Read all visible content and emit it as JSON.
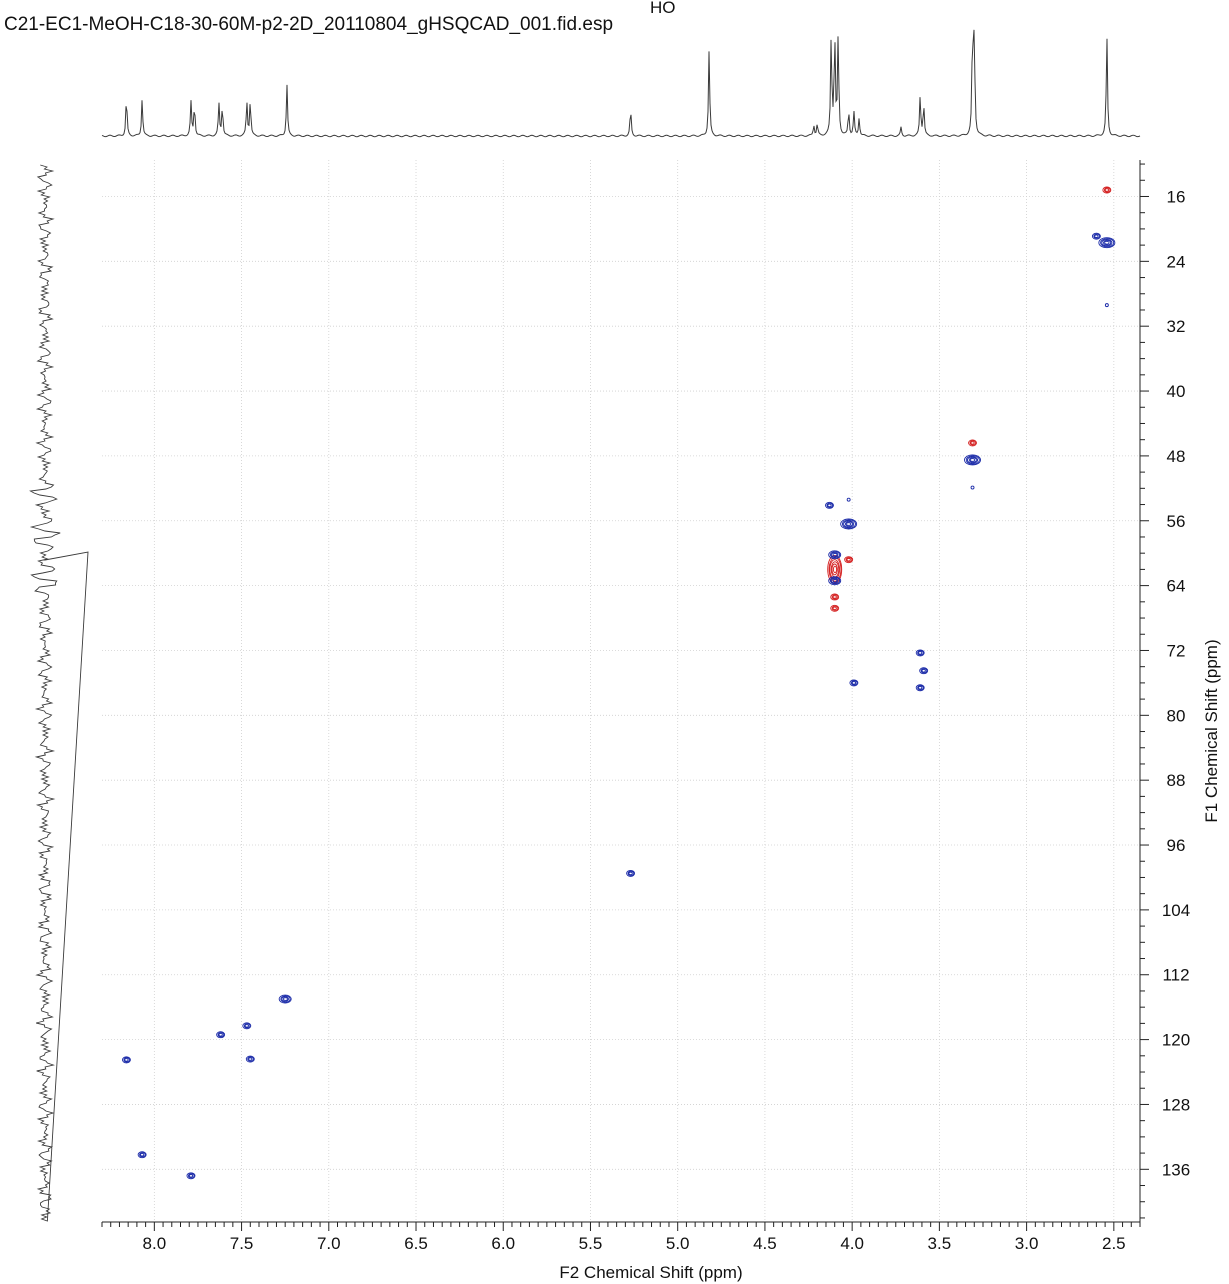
{
  "header": {
    "file_title": "C21-EC1-MeOH-C18-30-60M-p2-2D_20110804_gHSQCAD_001.fid.esp",
    "structure_fragment": "HO"
  },
  "colors": {
    "positive_contour": "#1a2aa8",
    "negative_contour": "#d42020",
    "grid": "#cfcfcf",
    "trace": "#3a3a3a"
  },
  "chart_data": {
    "type": "scatter",
    "subtype": "2D NMR HSQC contour plot",
    "xlabel": "F2 Chemical Shift (ppm)",
    "ylabel": "F1 Chemical Shift (ppm)",
    "xlim": [
      8.3,
      2.35
    ],
    "ylim": [
      11.5,
      142.5
    ],
    "x_ticks": [
      "8.0",
      "7.5",
      "7.0",
      "6.5",
      "6.0",
      "5.5",
      "5.0",
      "4.5",
      "4.0",
      "3.5",
      "3.0",
      "2.5"
    ],
    "y_ticks": [
      "16",
      "24",
      "32",
      "40",
      "48",
      "56",
      "64",
      "72",
      "80",
      "88",
      "96",
      "104",
      "112",
      "120",
      "128",
      "136"
    ],
    "grid": true,
    "peaks": [
      {
        "x": 2.54,
        "y": 15.2,
        "phase": "negative",
        "size": "small"
      },
      {
        "x": 2.54,
        "y": 21.7,
        "phase": "positive",
        "size": "large"
      },
      {
        "x": 2.6,
        "y": 20.9,
        "phase": "positive",
        "size": "small"
      },
      {
        "x": 2.54,
        "y": 29.4,
        "phase": "positive",
        "size": "tiny"
      },
      {
        "x": 3.31,
        "y": 48.5,
        "phase": "positive",
        "size": "large"
      },
      {
        "x": 3.31,
        "y": 46.4,
        "phase": "negative",
        "size": "small"
      },
      {
        "x": 3.31,
        "y": 51.9,
        "phase": "positive",
        "size": "tiny"
      },
      {
        "x": 4.02,
        "y": 56.4,
        "phase": "positive",
        "size": "large"
      },
      {
        "x": 4.02,
        "y": 53.4,
        "phase": "positive",
        "size": "tiny"
      },
      {
        "x": 4.13,
        "y": 54.1,
        "phase": "positive",
        "size": "small"
      },
      {
        "x": 4.1,
        "y": 62.0,
        "phase": "negative",
        "size": "xlarge"
      },
      {
        "x": 4.1,
        "y": 60.2,
        "phase": "positive",
        "size": "medium"
      },
      {
        "x": 4.1,
        "y": 63.4,
        "phase": "positive",
        "size": "medium"
      },
      {
        "x": 4.1,
        "y": 65.4,
        "phase": "negative",
        "size": "small"
      },
      {
        "x": 4.1,
        "y": 66.8,
        "phase": "negative",
        "size": "small"
      },
      {
        "x": 4.02,
        "y": 60.8,
        "phase": "negative",
        "size": "small"
      },
      {
        "x": 3.61,
        "y": 72.3,
        "phase": "positive",
        "size": "small"
      },
      {
        "x": 3.59,
        "y": 74.5,
        "phase": "positive",
        "size": "small"
      },
      {
        "x": 3.99,
        "y": 76.0,
        "phase": "positive",
        "size": "small"
      },
      {
        "x": 3.61,
        "y": 76.6,
        "phase": "positive",
        "size": "small"
      },
      {
        "x": 5.27,
        "y": 99.5,
        "phase": "positive",
        "size": "small"
      },
      {
        "x": 7.25,
        "y": 115.0,
        "phase": "positive",
        "size": "medium"
      },
      {
        "x": 7.47,
        "y": 118.3,
        "phase": "positive",
        "size": "small"
      },
      {
        "x": 7.62,
        "y": 119.4,
        "phase": "positive",
        "size": "small"
      },
      {
        "x": 7.45,
        "y": 122.4,
        "phase": "positive",
        "size": "small"
      },
      {
        "x": 8.16,
        "y": 122.5,
        "phase": "positive",
        "size": "small"
      },
      {
        "x": 8.07,
        "y": 134.2,
        "phase": "positive",
        "size": "small"
      },
      {
        "x": 7.79,
        "y": 136.8,
        "phase": "positive",
        "size": "small"
      }
    ],
    "f2_projection_peaks": [
      {
        "x": 8.16,
        "h": 0.56
      },
      {
        "x": 8.07,
        "h": 0.52
      },
      {
        "x": 7.79,
        "h": 0.47
      },
      {
        "x": 7.77,
        "h": 0.45
      },
      {
        "x": 7.63,
        "h": 0.45
      },
      {
        "x": 7.61,
        "h": 0.43
      },
      {
        "x": 7.47,
        "h": 0.48
      },
      {
        "x": 7.45,
        "h": 0.5
      },
      {
        "x": 7.24,
        "h": 0.72
      },
      {
        "x": 5.27,
        "h": 0.38
      },
      {
        "x": 4.82,
        "h": 1.2
      },
      {
        "x": 4.22,
        "h": 0.15
      },
      {
        "x": 4.2,
        "h": 0.16
      },
      {
        "x": 4.12,
        "h": 1.4
      },
      {
        "x": 4.1,
        "h": 1.4
      },
      {
        "x": 4.08,
        "h": 1.4
      },
      {
        "x": 4.02,
        "h": 0.35
      },
      {
        "x": 3.99,
        "h": 0.33
      },
      {
        "x": 3.96,
        "h": 0.25
      },
      {
        "x": 3.72,
        "h": 0.12
      },
      {
        "x": 3.61,
        "h": 0.56
      },
      {
        "x": 3.59,
        "h": 0.45
      },
      {
        "x": 3.31,
        "h": 1.4
      },
      {
        "x": 3.3,
        "h": 1.4
      },
      {
        "x": 2.54,
        "h": 1.4
      }
    ]
  }
}
